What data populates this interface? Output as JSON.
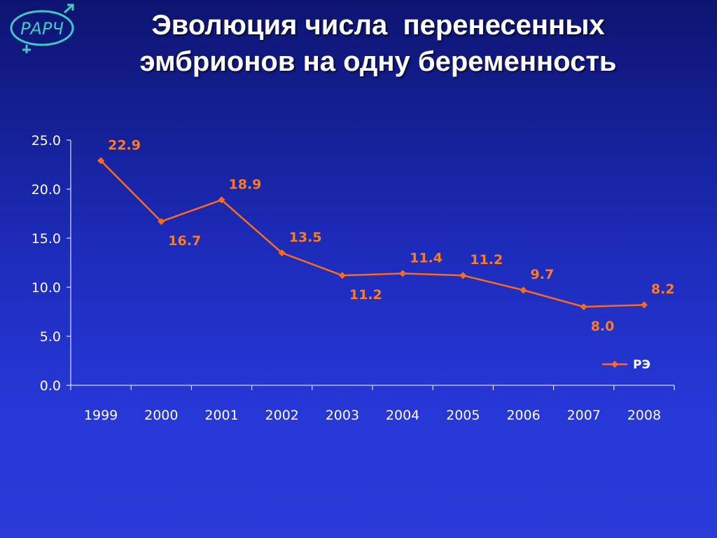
{
  "title": {
    "line1": "Эволюция числа  перенесенных",
    "line2": "эмбрионов на одну беременность"
  },
  "logo": {
    "text": "РАРЧ",
    "color": "#3fc8c8",
    "icon": "male-female-symbol-logo"
  },
  "colors": {
    "background_top": "#0d1470",
    "background_bottom": "#2a3bd8",
    "series": "#ff6a1a",
    "data_label": "#ff7a21",
    "axis_text": "#ffffff"
  },
  "chart_data": {
    "type": "line",
    "title": "",
    "xlabel": "",
    "ylabel": "",
    "categories": [
      "1999",
      "2000",
      "2001",
      "2002",
      "2003",
      "2004",
      "2005",
      "2006",
      "2007",
      "2008"
    ],
    "series": [
      {
        "name": "РЭ",
        "values": [
          22.9,
          16.7,
          18.9,
          13.5,
          11.2,
          11.4,
          11.2,
          9.7,
          8.0,
          8.2
        ],
        "labels": [
          "22.9",
          "16.7",
          "18.9",
          "13.5",
          "11.2",
          "11.4",
          "11.2",
          "9.7",
          "8.0",
          "8.2"
        ],
        "marker": "diamond"
      }
    ],
    "ylim": [
      0,
      25
    ],
    "yticks": [
      "0.0",
      "5.0",
      "10.0",
      "15.0",
      "20.0",
      "25.0"
    ],
    "grid": false,
    "legend": "right"
  }
}
